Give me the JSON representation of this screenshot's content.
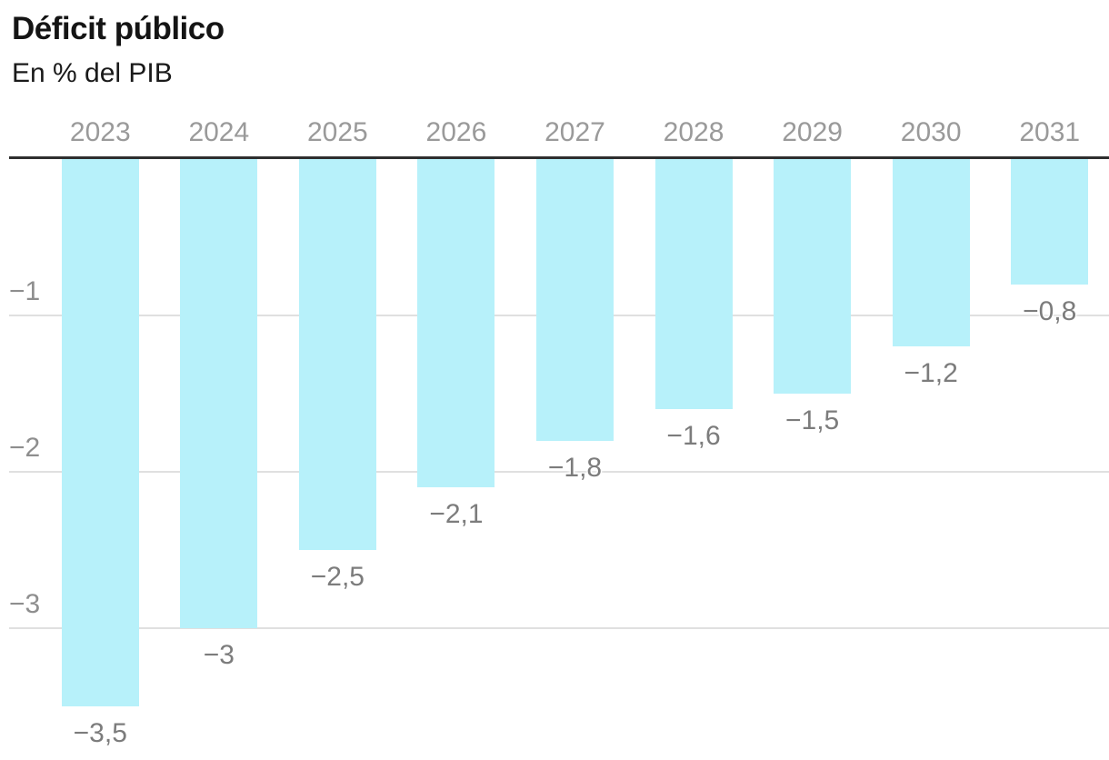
{
  "header": {
    "title": "Déficit público",
    "subtitle": "En % del PIB"
  },
  "chart_data": {
    "type": "bar",
    "title": "Déficit público",
    "subtitle": "En % del PIB",
    "xlabel": "",
    "ylabel": "En % del PIB",
    "categories": [
      "2023",
      "2024",
      "2025",
      "2026",
      "2027",
      "2028",
      "2029",
      "2030",
      "2031"
    ],
    "values": [
      -3.5,
      -3,
      -2.5,
      -2.1,
      -1.8,
      -1.6,
      -1.5,
      -1.2,
      -0.8
    ],
    "value_labels": [
      "−3,5",
      "−3",
      "−2,5",
      "−2,1",
      "−1,8",
      "−1,6",
      "−1,5",
      "−1,2",
      "−0,8"
    ],
    "yticks": [
      {
        "value": -1,
        "label": "−1"
      },
      {
        "value": -2,
        "label": "−2"
      },
      {
        "value": -3,
        "label": "−3"
      }
    ],
    "ylim": [
      -3.85,
      0
    ],
    "grid": true,
    "legend": false,
    "category_axis_position": "top",
    "colors": {
      "bar": "#b7f1fa",
      "axis_line": "#2e2e2e",
      "gridline": "#e0e0e0",
      "year_label": "#9a9a9a",
      "value_label": "#7c7c7c",
      "tick_label": "#8e8e8e",
      "title": "#141414",
      "subtitle": "#1a1a1a",
      "background": "#ffffff"
    }
  }
}
